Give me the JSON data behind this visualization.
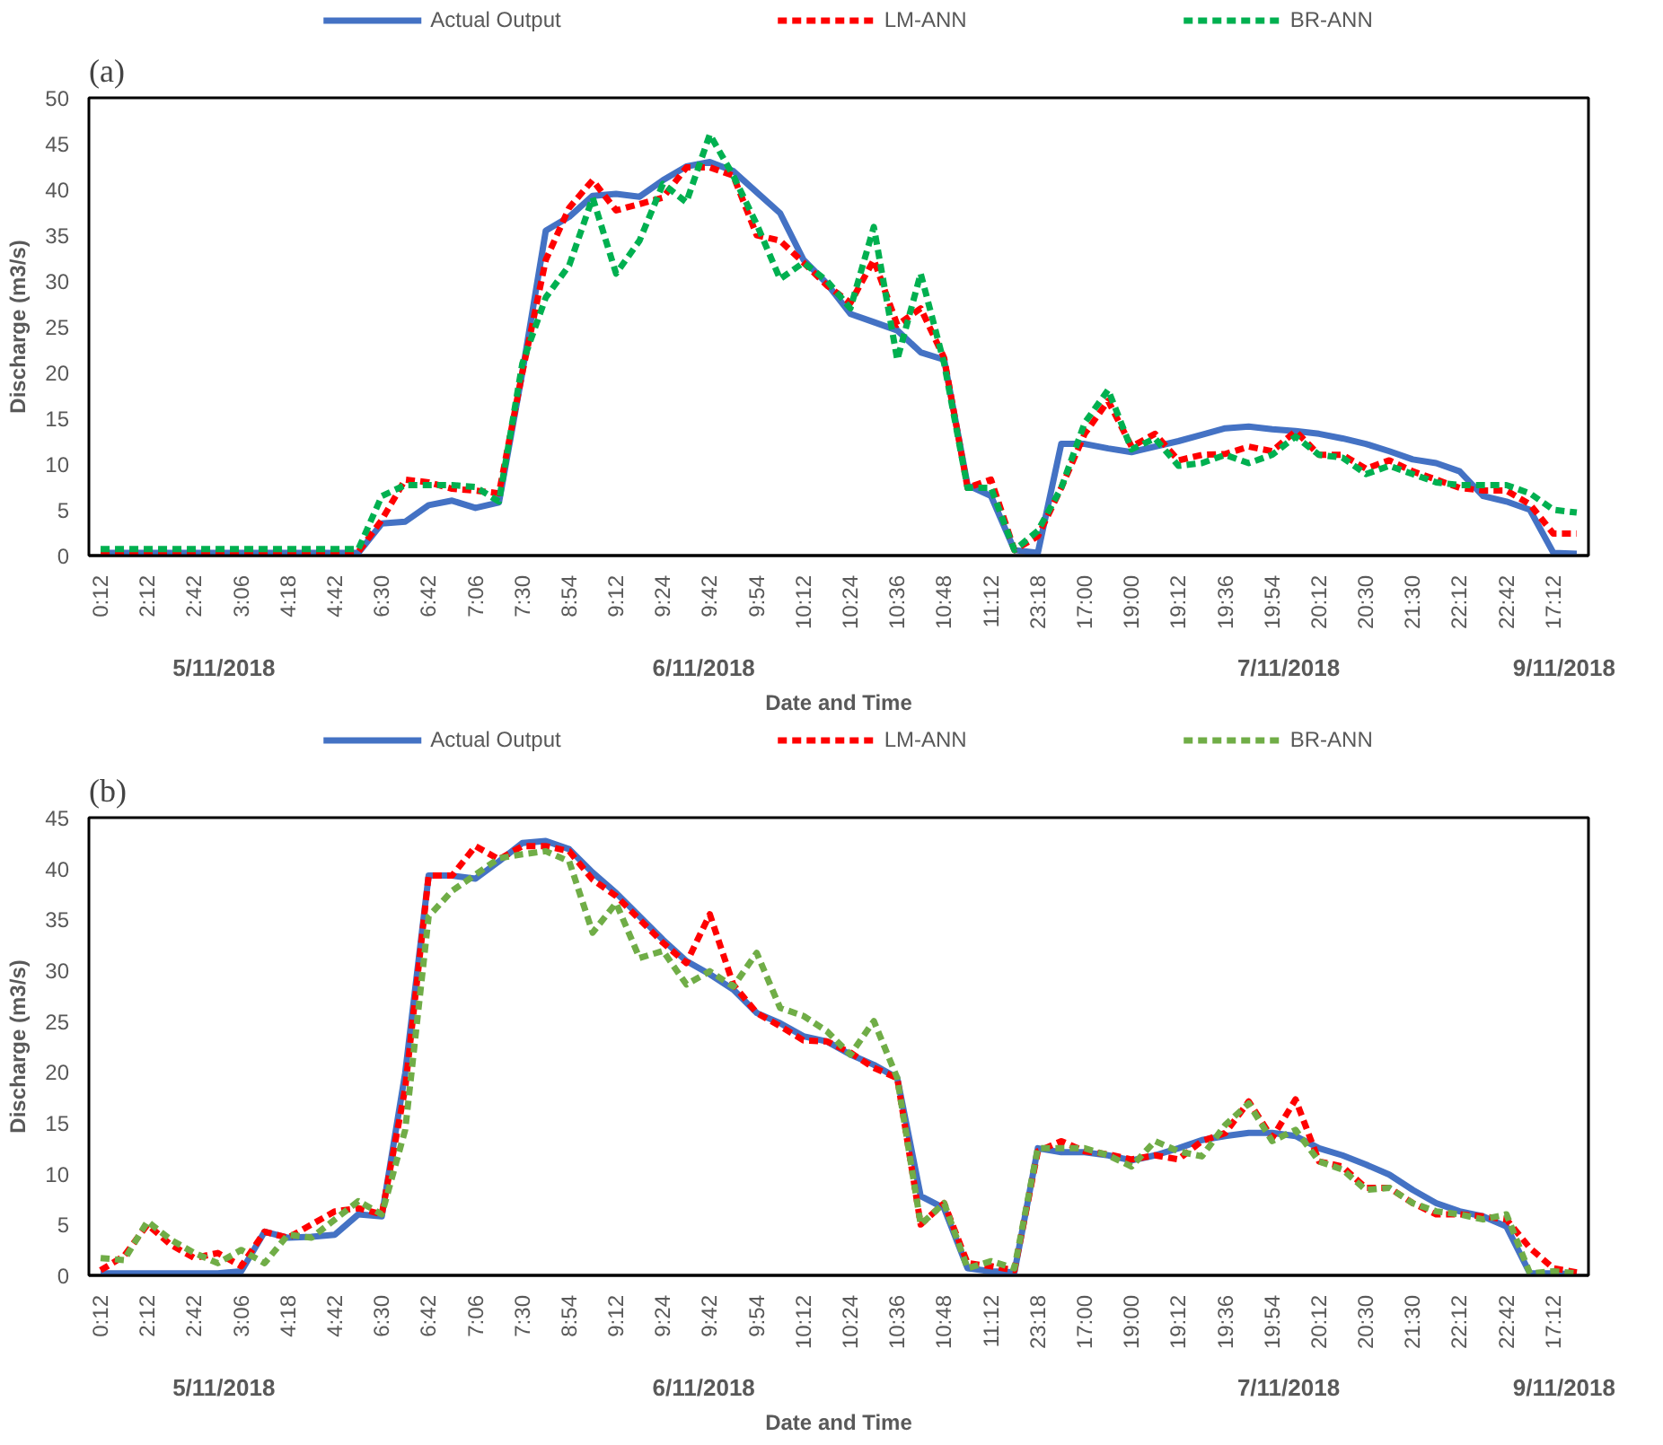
{
  "chart_data": [
    {
      "type": "line",
      "title": "(a)",
      "xlabel": "Date and Time",
      "ylabel": "Discharge (m3/s)",
      "legend": "top",
      "grid": false,
      "ylim": [
        0,
        50
      ],
      "yticks": [
        0,
        5,
        10,
        15,
        20,
        25,
        30,
        35,
        40,
        45,
        50
      ],
      "categories": [
        "0:12",
        null,
        "2:12",
        null,
        "2:42",
        null,
        "3:06",
        null,
        "4:18",
        null,
        "4:42",
        null,
        "6:30",
        null,
        "6:42",
        null,
        "7:06",
        null,
        "7:30",
        null,
        "8:54",
        null,
        "9:12",
        null,
        "9:24",
        null,
        "9:42",
        null,
        "9:54",
        null,
        "10:12",
        null,
        "10:24",
        null,
        "10:36",
        null,
        "10:48",
        null,
        "11:12",
        null,
        "23:18",
        null,
        "17:00",
        null,
        "19:00",
        null,
        "19:12",
        null,
        "19:36",
        null,
        "19:54",
        null,
        "20:12",
        null,
        "20:30",
        null,
        "21:30",
        null,
        "22:12",
        null,
        "22:42",
        null,
        "17:12",
        null
      ],
      "annotations": [
        "5/11/2018",
        "6/11/2018",
        "7/11/2018",
        "9/11/2018"
      ],
      "series": [
        {
          "name": "Actual Output",
          "color": "#4472c4",
          "line_style": "solid",
          "values": [
            0.3,
            0.3,
            0.3,
            0.3,
            0.3,
            0.3,
            0.3,
            0.3,
            0.3,
            0.3,
            0.3,
            0.3,
            3.5,
            3.7,
            5.5,
            6,
            5.2,
            5.8,
            20,
            35.5,
            37,
            39.3,
            39.5,
            39.2,
            41,
            42.5,
            43,
            42,
            39.7,
            37.4,
            32.3,
            29.7,
            26.4,
            25.5,
            24.6,
            22.2,
            21.4,
            7.7,
            6.5,
            0.6,
            0.3,
            12.2,
            12.2,
            11.7,
            11.3,
            11.9,
            12.5,
            13.2,
            13.9,
            14.1,
            13.8,
            13.6,
            13.3,
            12.8,
            12.2,
            11.4,
            10.5,
            10.1,
            9.2,
            6.5,
            5.9,
            5,
            0.3,
            0.2
          ]
        },
        {
          "name": "LM-ANN",
          "color": "#ff0000",
          "line_style": "dashed",
          "values": [
            0.4,
            0.4,
            0.4,
            0.4,
            0.4,
            0.4,
            0.4,
            0.4,
            0.4,
            0.4,
            0.4,
            0.4,
            3.9,
            8.3,
            8,
            7.3,
            7.1,
            6.8,
            20,
            32.3,
            38,
            41,
            37.7,
            38.4,
            39.1,
            42.4,
            42.4,
            41.5,
            35,
            34.4,
            32,
            29.5,
            27.6,
            32.3,
            25.2,
            27,
            21.6,
            7.4,
            8.3,
            0.6,
            2.1,
            7.4,
            13.3,
            16.9,
            11.9,
            13.3,
            10.4,
            11,
            11.1,
            11.9,
            11.4,
            13.6,
            11,
            11,
            9.5,
            10.4,
            9.2,
            8.3,
            7.4,
            7.1,
            7.1,
            5.6,
            2.4,
            2.4
          ]
        },
        {
          "name": "BR-ANN",
          "color": "#00b050",
          "line_style": "dashed",
          "values": [
            0.7,
            0.7,
            0.7,
            0.7,
            0.7,
            0.7,
            0.7,
            0.7,
            0.7,
            0.7,
            0.7,
            0.7,
            6.5,
            7.7,
            7.7,
            7.7,
            7.5,
            5.9,
            21,
            28.2,
            31.7,
            39.1,
            30.8,
            34.4,
            40.6,
            38.6,
            46,
            41.5,
            36.2,
            30.2,
            32,
            30,
            27,
            35.9,
            21.4,
            30.8,
            21,
            7.4,
            7.4,
            0.6,
            2.7,
            7.4,
            14.5,
            18.1,
            11.6,
            12.8,
            9.8,
            10.1,
            11,
            10.1,
            11,
            13,
            11,
            10.7,
            8.9,
            9.8,
            8.9,
            8,
            7.7,
            7.7,
            7.7,
            6.8,
            5,
            4.7
          ]
        }
      ]
    },
    {
      "type": "line",
      "title": "(b)",
      "xlabel": "Date and Time",
      "ylabel": "Discharge (m3/s)",
      "legend": "top",
      "grid": false,
      "ylim": [
        0,
        45
      ],
      "yticks": [
        0,
        5,
        10,
        15,
        20,
        25,
        30,
        35,
        40,
        45
      ],
      "categories": [
        "0:12",
        null,
        "2:12",
        null,
        "2:42",
        null,
        "3:06",
        null,
        "4:18",
        null,
        "4:42",
        null,
        "6:30",
        null,
        "6:42",
        null,
        "7:06",
        null,
        "7:30",
        null,
        "8:54",
        null,
        "9:12",
        null,
        "9:24",
        null,
        "9:42",
        null,
        "9:54",
        null,
        "10:12",
        null,
        "10:24",
        null,
        "10:36",
        null,
        "10:48",
        null,
        "11:12",
        null,
        "23:18",
        null,
        "17:00",
        null,
        "19:00",
        null,
        "19:12",
        null,
        "19:36",
        null,
        "19:54",
        null,
        "20:12",
        null,
        "20:30",
        null,
        "21:30",
        null,
        "22:12",
        null,
        "22:42",
        null,
        "17:12",
        null
      ],
      "annotations": [
        "5/11/2018",
        "6/11/2018",
        "7/11/2018",
        "9/11/2018"
      ],
      "series": [
        {
          "name": "Actual Output",
          "color": "#4472c4",
          "line_style": "solid",
          "values": [
            0.2,
            0.2,
            0.2,
            0.2,
            0.2,
            0.2,
            0.4,
            4.3,
            3.7,
            3.8,
            4,
            6,
            5.8,
            19.9,
            39.3,
            39.3,
            39,
            40.7,
            42.5,
            42.7,
            41.9,
            39.6,
            37.6,
            35.3,
            33,
            30.9,
            29.6,
            28.1,
            25.8,
            24.8,
            23.5,
            23,
            21.7,
            20.7,
            19.4,
            7.8,
            6.6,
            0.7,
            0.4,
            0.3,
            12.5,
            12.1,
            12.1,
            11.8,
            11.3,
            11.8,
            12.5,
            13.3,
            13.7,
            14,
            14,
            13.7,
            12.5,
            11.8,
            10.9,
            9.9,
            8.4,
            7.1,
            6.3,
            5.8,
            4.8,
            0.2,
            0.2,
            0.1
          ]
        },
        {
          "name": "LM-ANN",
          "color": "#ff0000",
          "line_style": "dashed",
          "values": [
            0.5,
            1.9,
            5,
            3,
            1.7,
            2.2,
            0.9,
            4.3,
            3.7,
            5,
            6.3,
            6.6,
            6,
            18.4,
            39.3,
            39.3,
            42.2,
            40.9,
            42.2,
            42.2,
            41.7,
            38.9,
            37.3,
            35,
            32.7,
            30.7,
            35.5,
            28.6,
            25.8,
            24.5,
            23.1,
            23,
            21.9,
            20.4,
            19.4,
            5,
            7.1,
            1.2,
            0.9,
            0.5,
            12.2,
            13.2,
            12.2,
            11.9,
            11.4,
            11.8,
            11.4,
            13.2,
            14,
            17.1,
            13.5,
            17.3,
            11.2,
            10.7,
            8.6,
            8.6,
            7.1,
            6,
            6,
            5.8,
            5.5,
            2.7,
            0.7,
            0.3
          ]
        },
        {
          "name": "BR-ANN",
          "color": "#70ad47",
          "line_style": "dashed",
          "values": [
            1.7,
            1.5,
            5.3,
            3.5,
            2.2,
            1.2,
            2.5,
            1.2,
            4,
            3.7,
            5.5,
            7.3,
            6,
            14.3,
            35.3,
            37.8,
            39.4,
            41,
            41.4,
            41.7,
            40.7,
            33.7,
            36.6,
            31.2,
            31.9,
            28.6,
            29.9,
            28.4,
            31.7,
            26.3,
            25.5,
            24,
            21.7,
            25,
            19.4,
            5,
            7.1,
            0.7,
            1.4,
            0.7,
            12.5,
            12.5,
            12.5,
            11.8,
            10.7,
            13.2,
            12.2,
            11.7,
            14.8,
            16.9,
            13.2,
            14.3,
            11.2,
            10.4,
            8.4,
            8.6,
            7.1,
            6.3,
            6,
            5.5,
            6,
            0.2,
            0.4,
            0.2
          ]
        }
      ]
    }
  ]
}
